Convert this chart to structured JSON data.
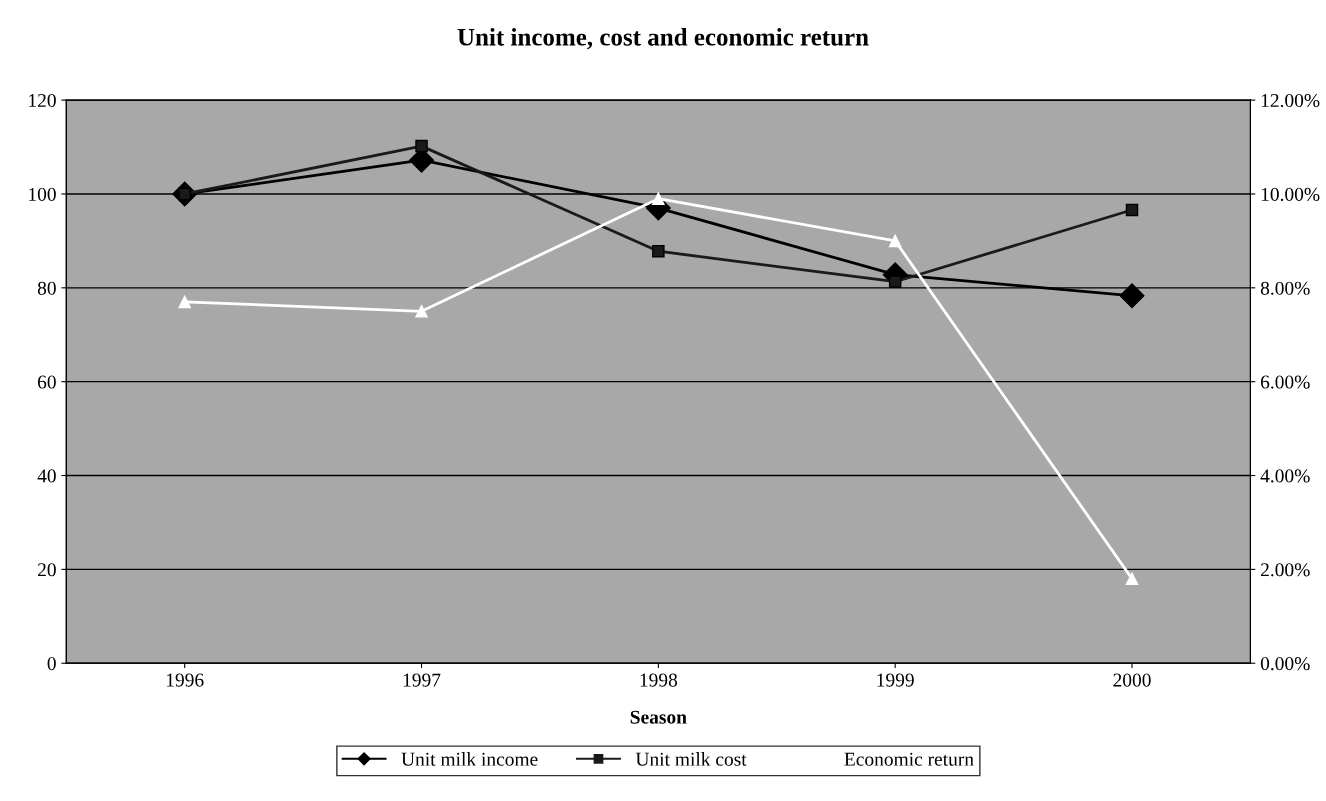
{
  "chart_data": {
    "type": "line",
    "title": "Unit income, cost and economic return",
    "xlabel": "Season",
    "categories": [
      "1996",
      "1997",
      "1998",
      "1999",
      "2000"
    ],
    "series": [
      {
        "name": "Unit milk income",
        "color": "#000000",
        "marker": "diamond",
        "values": [
          100,
          107.2,
          97.0,
          82.8,
          78.3
        ]
      },
      {
        "name": "Unit milk cost",
        "color": "#1a1a1a",
        "marker": "square",
        "values": [
          100,
          110.2,
          87.8,
          81.3,
          96.6
        ]
      },
      {
        "name": "Economic return",
        "color": "#ffffff",
        "marker": "triangle",
        "axis": "y2",
        "values": [
          7.7,
          7.5,
          9.9,
          9.0,
          1.8
        ]
      }
    ],
    "ylim": [
      0,
      120
    ],
    "yticks": [
      0,
      20,
      40,
      60,
      80,
      100,
      120
    ],
    "y2lim": [
      0,
      12
    ],
    "y2ticks": [
      {
        "value": 0,
        "label": "0.00%"
      },
      {
        "value": 2,
        "label": "2.00%"
      },
      {
        "value": 4,
        "label": "4.00%"
      },
      {
        "value": 6,
        "label": "6.00%"
      },
      {
        "value": 8,
        "label": "8.00%"
      },
      {
        "value": 10,
        "label": "10.00%"
      },
      {
        "value": 12,
        "label": "12.00%"
      }
    ],
    "grid": "y",
    "legend": "bottom"
  }
}
